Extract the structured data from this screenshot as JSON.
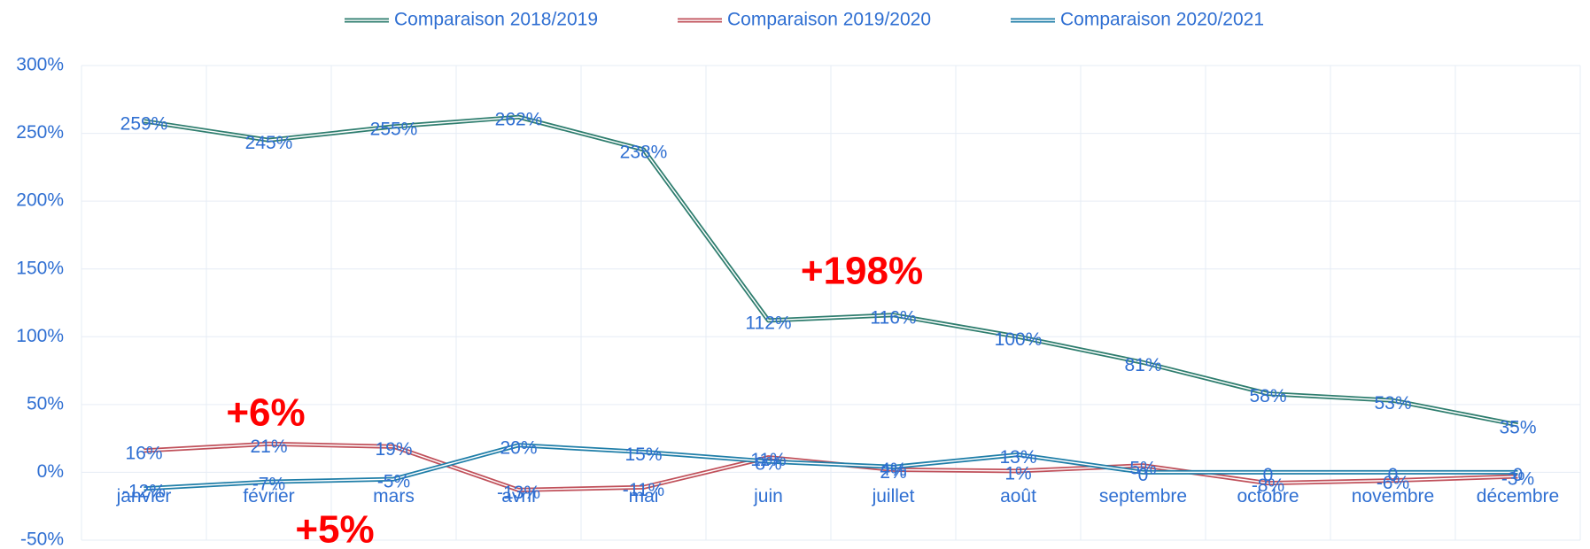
{
  "chart_data": {
    "type": "line",
    "categories": [
      "janvier",
      "février",
      "mars",
      "avril",
      "mai",
      "juin",
      "juillet",
      "août",
      "septembre",
      "octobre",
      "novembre",
      "décembre"
    ],
    "series": [
      {
        "name": "Comparaison 2018/2019",
        "color": "#2e7d6e",
        "values": [
          259,
          245,
          255,
          262,
          238,
          112,
          116,
          100,
          81,
          58,
          53,
          35
        ],
        "value_labels": [
          "259%",
          "245%",
          "255%",
          "262%",
          "238%",
          "112%",
          "116%",
          "100%",
          "81%",
          "58%",
          "53%",
          "35%"
        ]
      },
      {
        "name": "Comparaison 2019/2020",
        "color": "#c0505a",
        "values": [
          16,
          21,
          19,
          -13,
          -11,
          11,
          2,
          1,
          5,
          -8,
          -6,
          -3
        ],
        "value_labels": [
          "16%",
          "21%",
          "19%",
          "-13%",
          "-11%",
          "11%",
          "2%",
          "1%",
          "5%",
          "-8%",
          "-6%",
          "-3%"
        ]
      },
      {
        "name": "Comparaison 2020/2021",
        "color": "#1f7ea8",
        "values": [
          -12,
          -7,
          -5,
          20,
          15,
          8,
          4,
          13,
          0,
          0,
          0,
          0
        ],
        "value_labels": [
          "-12%",
          "-7%",
          "-5%",
          "20%",
          "15%",
          "8%",
          "4%",
          "13%",
          "0",
          "0",
          "0",
          "0"
        ]
      }
    ],
    "annotations": [
      "+198%",
      "+6%",
      "+5%"
    ],
    "ylim": [
      -50,
      300
    ],
    "yticks": [
      {
        "value": -50,
        "label": "-50%"
      },
      {
        "value": 0,
        "label": "0%"
      },
      {
        "value": 50,
        "label": "50%"
      },
      {
        "value": 100,
        "label": "100%"
      },
      {
        "value": 150,
        "label": "150%"
      },
      {
        "value": 200,
        "label": "200%"
      },
      {
        "value": 250,
        "label": "250%"
      },
      {
        "value": 300,
        "label": "300%"
      }
    ],
    "grid": true
  }
}
